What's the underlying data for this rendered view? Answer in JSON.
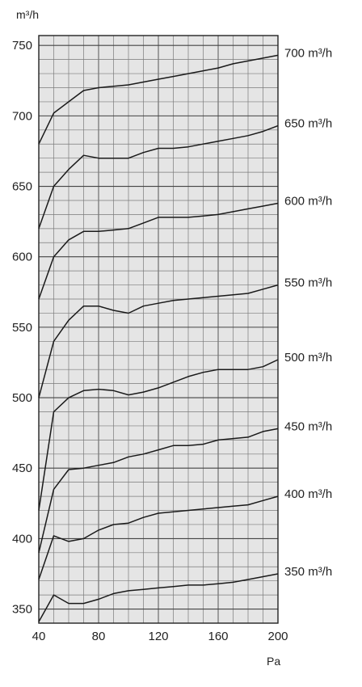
{
  "chart_data": {
    "type": "line",
    "ylabel": "m³/h",
    "xlabel": "Pa",
    "xlim": [
      40,
      200
    ],
    "ylim": [
      340,
      757
    ],
    "x_ticks": [
      "40",
      "80",
      "120",
      "160",
      "200"
    ],
    "y_ticks": [
      "750",
      "700",
      "650",
      "600",
      "550",
      "500",
      "450",
      "400",
      "350"
    ],
    "grid": true,
    "series": [
      {
        "name": "700 m³/h",
        "x": [
          40,
          50,
          60,
          70,
          80,
          90,
          100,
          110,
          120,
          130,
          140,
          150,
          160,
          170,
          180,
          190,
          200
        ],
        "y": [
          680,
          702,
          710,
          718,
          720,
          721,
          722,
          724,
          726,
          728,
          730,
          732,
          734,
          737,
          739,
          741,
          743
        ]
      },
      {
        "name": "650 m³/h",
        "x": [
          40,
          50,
          60,
          70,
          80,
          90,
          100,
          110,
          120,
          130,
          140,
          150,
          160,
          170,
          180,
          190,
          200
        ],
        "y": [
          620,
          650,
          662,
          672,
          670,
          670,
          670,
          674,
          677,
          677,
          678,
          680,
          682,
          684,
          686,
          689,
          693
        ]
      },
      {
        "name": "600 m³/h",
        "x": [
          40,
          50,
          60,
          70,
          80,
          90,
          100,
          110,
          120,
          130,
          140,
          150,
          160,
          170,
          180,
          190,
          200
        ],
        "y": [
          570,
          600,
          612,
          618,
          618,
          619,
          620,
          624,
          628,
          628,
          628,
          629,
          630,
          632,
          634,
          636,
          638
        ]
      },
      {
        "name": "550 m³/h",
        "x": [
          40,
          50,
          60,
          70,
          80,
          90,
          100,
          110,
          120,
          130,
          140,
          150,
          160,
          170,
          180,
          190,
          200
        ],
        "y": [
          500,
          540,
          555,
          565,
          565,
          562,
          560,
          565,
          567,
          569,
          570,
          571,
          572,
          573,
          574,
          577,
          580
        ]
      },
      {
        "name": "500 m³/h",
        "x": [
          40,
          50,
          60,
          70,
          80,
          90,
          100,
          110,
          120,
          130,
          140,
          150,
          160,
          170,
          180,
          190,
          200
        ],
        "y": [
          420,
          490,
          500,
          505,
          506,
          505,
          502,
          504,
          507,
          511,
          515,
          518,
          520,
          520,
          520,
          522,
          527
        ]
      },
      {
        "name": "450 m³/h",
        "x": [
          40,
          50,
          60,
          70,
          80,
          90,
          100,
          110,
          120,
          130,
          140,
          150,
          160,
          170,
          180,
          190,
          200
        ],
        "y": [
          390,
          435,
          449,
          450,
          452,
          454,
          458,
          460,
          463,
          466,
          466,
          467,
          470,
          471,
          472,
          476,
          478
        ]
      },
      {
        "name": "400 m³/h",
        "x": [
          40,
          50,
          60,
          70,
          80,
          90,
          100,
          110,
          120,
          130,
          140,
          150,
          160,
          170,
          180,
          190,
          200
        ],
        "y": [
          371,
          402,
          398,
          400,
          406,
          410,
          411,
          415,
          418,
          419,
          420,
          421,
          422,
          423,
          424,
          427,
          430
        ]
      },
      {
        "name": "350 m³/h",
        "x": [
          40,
          50,
          60,
          70,
          80,
          90,
          100,
          110,
          120,
          130,
          140,
          150,
          160,
          170,
          180,
          190,
          200
        ],
        "y": [
          341,
          360,
          354,
          354,
          357,
          361,
          363,
          364,
          365,
          366,
          367,
          367,
          368,
          369,
          371,
          373,
          375
        ]
      }
    ]
  }
}
